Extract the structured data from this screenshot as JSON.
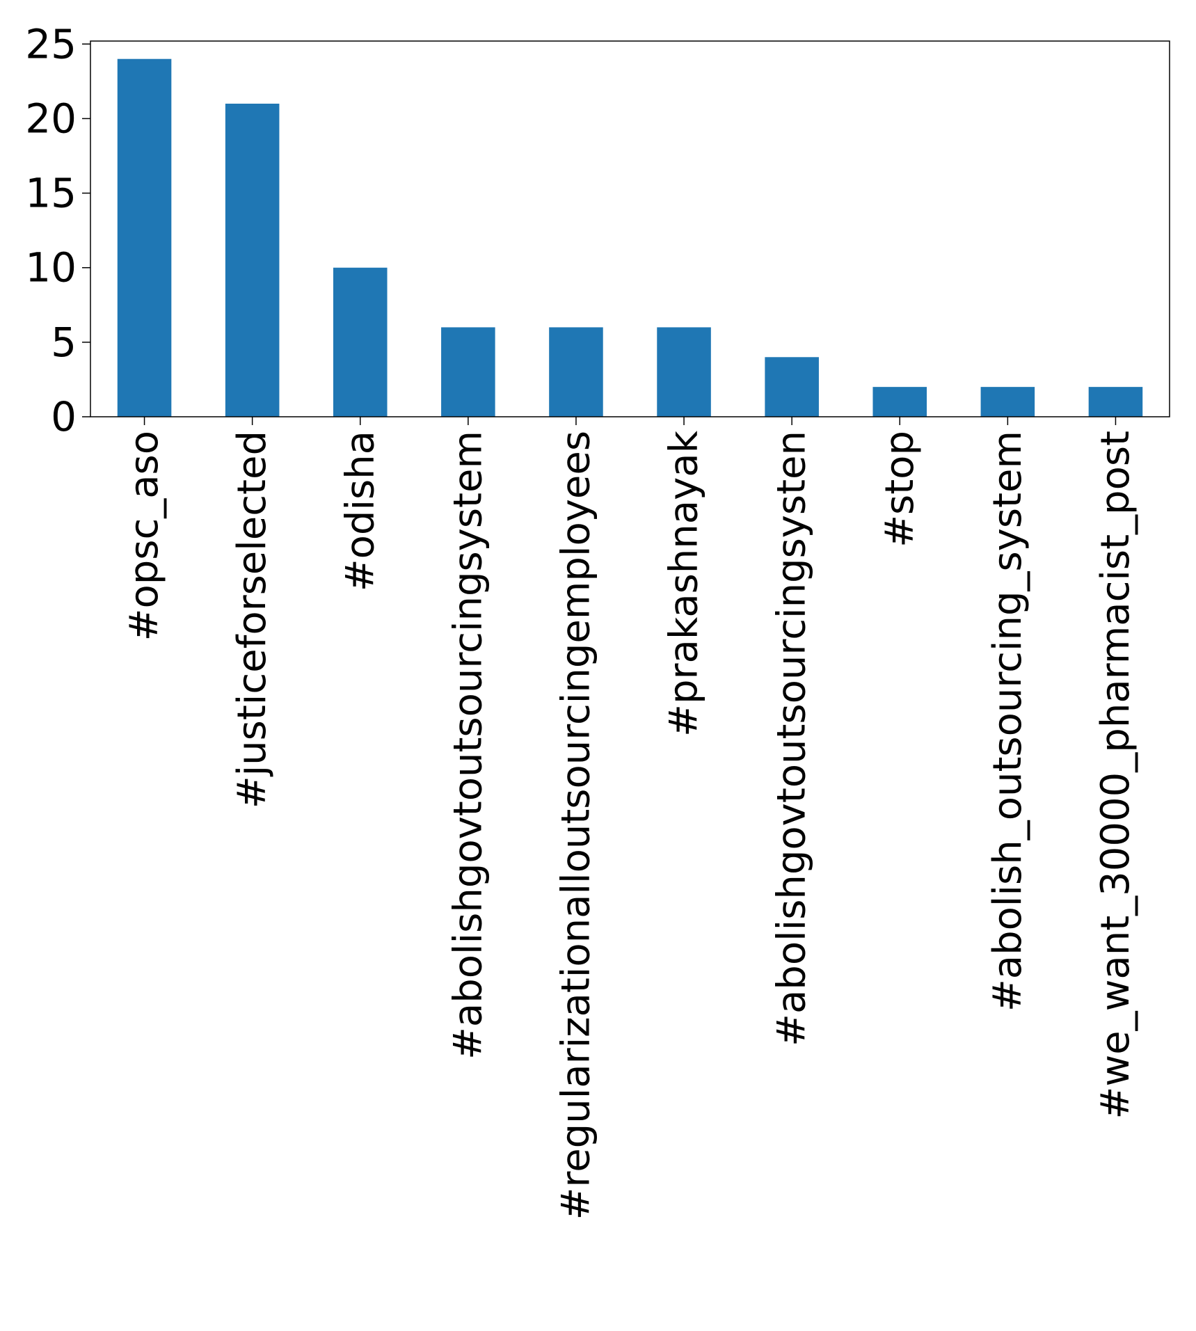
{
  "chart_data": {
    "type": "bar",
    "title": "",
    "xlabel": "",
    "ylabel": "",
    "categories": [
      "#opsc_aso",
      "#justiceforselected",
      "#odisha",
      "#abolishgovtoutsourcingsystem",
      "#regularizationalloutsourcingemployees",
      "#prakashnayak",
      "#abolishgovtoutsourcingsysten",
      "#stop",
      "#abolish_outsourcing_system",
      "#we_want_30000_pharmacist_post"
    ],
    "values": [
      24,
      21,
      10,
      6,
      6,
      6,
      4,
      2,
      2,
      2
    ],
    "ylim": [
      0,
      25.2
    ],
    "yticks": [
      "0",
      "5",
      "10",
      "15",
      "20",
      "25"
    ],
    "grid": false,
    "bar_color": "#1f77b4"
  }
}
